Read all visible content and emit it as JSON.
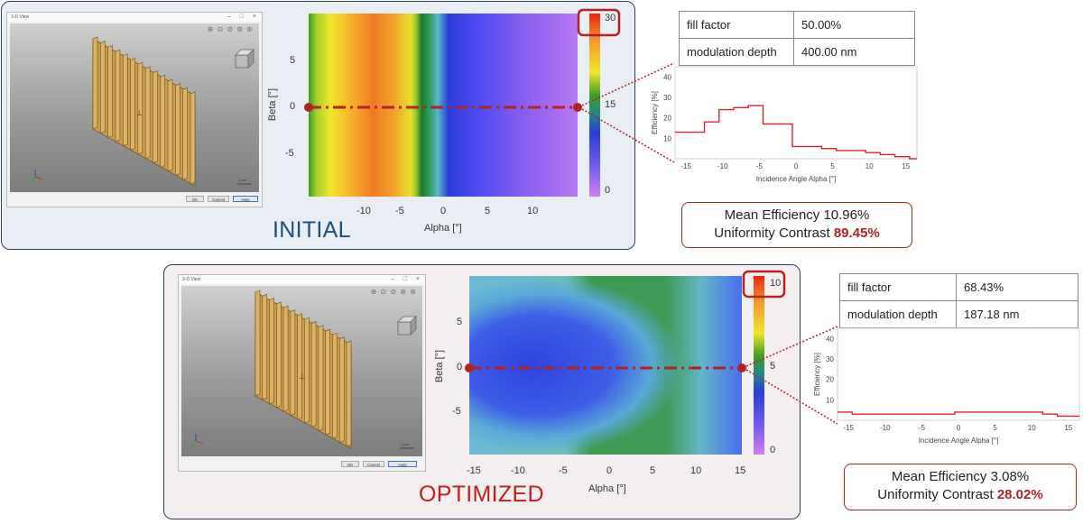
{
  "initial": {
    "label": "INITIAL",
    "window": {
      "title": "3-D View",
      "buttons": [
        "OK",
        "Cancel",
        "Help"
      ],
      "scale_label": "1 µm"
    },
    "heatmap": {
      "x_label": "Alpha [°]",
      "y_label": "Beta [°]",
      "x_ticks": [
        "-10",
        "-5",
        "0",
        "5",
        "10"
      ],
      "y_ticks": [
        "5",
        "0",
        "-5"
      ],
      "colorbar_ticks": [
        "30",
        "15",
        "0"
      ]
    },
    "table": [
      {
        "name": "fill factor",
        "value": "50.00%"
      },
      {
        "name": "modulation depth",
        "value": "400.00 nm"
      }
    ],
    "result": {
      "mean_label": "Mean Efficiency",
      "mean_value": "10.96%",
      "uniformity_label": "Uniformity Contrast",
      "uniformity_value": "89.45%"
    }
  },
  "optimized": {
    "label": "OPTIMIZED",
    "window": {
      "title": "3-D View",
      "buttons": [
        "OK",
        "Cancel",
        "Help"
      ],
      "scale_label": "1 µm"
    },
    "heatmap": {
      "x_label": "Alpha [°]",
      "y_label": "Beta [°]",
      "x_ticks": [
        "-15",
        "-10",
        "-5",
        "0",
        "5",
        "10",
        "15"
      ],
      "y_ticks": [
        "5",
        "0",
        "-5"
      ],
      "colorbar_ticks": [
        "10",
        "5",
        "0"
      ]
    },
    "table": [
      {
        "name": "fill factor",
        "value": "68.43%"
      },
      {
        "name": "modulation depth",
        "value": "187.18 nm"
      }
    ],
    "result": {
      "mean_label": "Mean Efficiency",
      "mean_value": "3.08%",
      "uniformity_label": "Uniformity Contrast",
      "uniformity_value": "28.02%"
    }
  },
  "chart_data": [
    {
      "type": "line",
      "step": true,
      "xlabel": "Incidence Angle Alpha [°]",
      "ylabel": "Efficiency [%]",
      "xlim": [
        -16.5,
        16.5
      ],
      "ylim": [
        0,
        45
      ],
      "x_ticks": [
        -15,
        -10,
        -5,
        0,
        5,
        10,
        15
      ],
      "y_ticks": [
        10,
        20,
        30,
        40
      ],
      "x": [
        -16.5,
        -14.5,
        -12.5,
        -10.5,
        -8.5,
        -6.5,
        -4.5,
        -2.5,
        -0.5,
        1.5,
        3.5,
        5.5,
        7.5,
        9.5,
        11.5,
        13.5,
        15.5
      ],
      "values": [
        13,
        13,
        18,
        24,
        25,
        26,
        17,
        17,
        6,
        6,
        5,
        4,
        4,
        3,
        2,
        1,
        0
      ],
      "color": "#d9262a"
    },
    {
      "type": "line",
      "step": true,
      "xlabel": "Incidence Angle Alpha [°]",
      "ylabel": "Efficiency [%]",
      "xlim": [
        -16.5,
        16.5
      ],
      "ylim": [
        0,
        45
      ],
      "x_ticks": [
        -15,
        -10,
        -5,
        0,
        5,
        10,
        15
      ],
      "y_ticks": [
        10,
        20,
        30,
        40
      ],
      "x": [
        -16.5,
        -14.5,
        -12.5,
        -10.5,
        -8.5,
        -6.5,
        -4.5,
        -2.5,
        -0.5,
        1.5,
        3.5,
        5.5,
        7.5,
        9.5,
        11.5,
        13.5,
        15.5
      ],
      "values": [
        4,
        3,
        3,
        3,
        3,
        3,
        3,
        3,
        4,
        4,
        4,
        4,
        4,
        4,
        3,
        2,
        2
      ],
      "color": "#d9262a"
    }
  ]
}
